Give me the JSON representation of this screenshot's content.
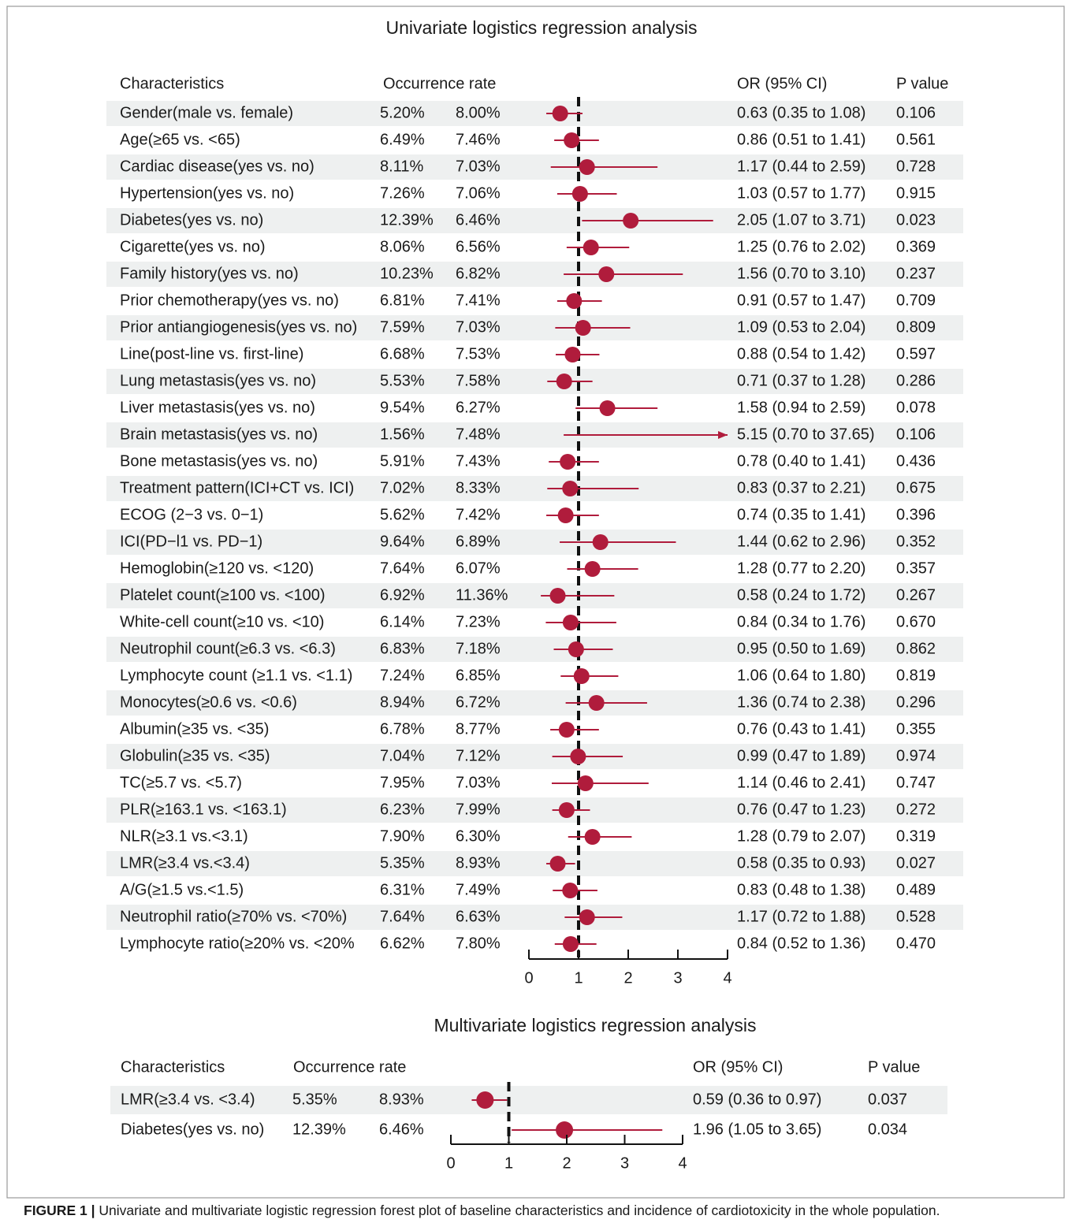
{
  "chart_data": [
    {
      "type": "forest",
      "title": "Univariate logistics regression analysis",
      "headers": [
        "Characteristics",
        "Occurrence rate",
        "OR (95% CI)",
        "P value"
      ],
      "xlim": [
        0,
        4
      ],
      "xticks": [
        0,
        1,
        2,
        3,
        4
      ],
      "ref_line": 1,
      "color": "#b01c3c",
      "rows": [
        {
          "label": "Gender(male vs. female)",
          "rate1": "5.20%",
          "rate2": "8.00%",
          "or": 0.63,
          "ci_low": 0.35,
          "ci_high": 1.08,
          "or_label": "0.63 (0.35 to 1.08)",
          "p": "0.106"
        },
        {
          "label": "Age(≥65 vs. <65)",
          "rate1": "6.49%",
          "rate2": "7.46%",
          "or": 0.86,
          "ci_low": 0.51,
          "ci_high": 1.41,
          "or_label": "0.86 (0.51 to 1.41)",
          "p": "0.561"
        },
        {
          "label": "Cardiac disease(yes vs. no)",
          "rate1": "8.11%",
          "rate2": "7.03%",
          "or": 1.17,
          "ci_low": 0.44,
          "ci_high": 2.59,
          "or_label": "1.17 (0.44 to 2.59)",
          "p": "0.728"
        },
        {
          "label": "Hypertension(yes vs. no)",
          "rate1": "7.26%",
          "rate2": "7.06%",
          "or": 1.03,
          "ci_low": 0.57,
          "ci_high": 1.77,
          "or_label": "1.03 (0.57 to 1.77)",
          "p": "0.915"
        },
        {
          "label": "Diabetes(yes vs. no)",
          "rate1": "12.39%",
          "rate2": "6.46%",
          "or": 2.05,
          "ci_low": 1.07,
          "ci_high": 3.71,
          "or_label": "2.05 (1.07 to 3.71)",
          "p": "0.023"
        },
        {
          "label": "Cigarette(yes vs. no)",
          "rate1": "8.06%",
          "rate2": "6.56%",
          "or": 1.25,
          "ci_low": 0.76,
          "ci_high": 2.02,
          "or_label": "1.25 (0.76 to 2.02)",
          "p": "0.369"
        },
        {
          "label": "Family history(yes vs. no)",
          "rate1": "10.23%",
          "rate2": "6.82%",
          "or": 1.56,
          "ci_low": 0.7,
          "ci_high": 3.1,
          "or_label": "1.56 (0.70 to 3.10)",
          "p": "0.237"
        },
        {
          "label": "Prior chemotherapy(yes vs. no)",
          "rate1": "6.81%",
          "rate2": "7.41%",
          "or": 0.91,
          "ci_low": 0.57,
          "ci_high": 1.47,
          "or_label": "0.91 (0.57 to 1.47)",
          "p": "0.709"
        },
        {
          "label": "Prior antiangiogenesis(yes vs. no)",
          "rate1": "7.59%",
          "rate2": "7.03%",
          "or": 1.09,
          "ci_low": 0.53,
          "ci_high": 2.04,
          "or_label": "1.09 (0.53 to 2.04)",
          "p": "0.809"
        },
        {
          "label": "Line(post-line vs. first-line)",
          "rate1": "6.68%",
          "rate2": "7.53%",
          "or": 0.88,
          "ci_low": 0.54,
          "ci_high": 1.42,
          "or_label": "0.88 (0.54 to 1.42)",
          "p": "0.597"
        },
        {
          "label": "Lung metastasis(yes vs. no)",
          "rate1": "5.53%",
          "rate2": "7.58%",
          "or": 0.71,
          "ci_low": 0.37,
          "ci_high": 1.28,
          "or_label": "0.71 (0.37 to 1.28)",
          "p": "0.286"
        },
        {
          "label": "Liver metastasis(yes vs. no)",
          "rate1": "9.54%",
          "rate2": "6.27%",
          "or": 1.58,
          "ci_low": 0.94,
          "ci_high": 2.59,
          "or_label": "1.58 (0.94 to 2.59)",
          "p": "0.078"
        },
        {
          "label": "Brain metastasis(yes vs. no)",
          "rate1": "1.56%",
          "rate2": "7.48%",
          "or": 5.15,
          "ci_low": 0.7,
          "ci_high": 37.65,
          "or_label": "5.15 (0.70 to 37.65)",
          "p": "0.106"
        },
        {
          "label": "Bone metastasis(yes vs. no)",
          "rate1": "5.91%",
          "rate2": "7.43%",
          "or": 0.78,
          "ci_low": 0.4,
          "ci_high": 1.41,
          "or_label": "0.78 (0.40 to 1.41)",
          "p": "0.436"
        },
        {
          "label": "Treatment pattern(ICI+CT vs. ICI)",
          "rate1": "7.02%",
          "rate2": "8.33%",
          "or": 0.83,
          "ci_low": 0.37,
          "ci_high": 2.21,
          "or_label": "0.83 (0.37 to 2.21)",
          "p": "0.675"
        },
        {
          "label": "ECOG  (2−3 vs. 0−1)",
          "rate1": "5.62%",
          "rate2": "7.42%",
          "or": 0.74,
          "ci_low": 0.35,
          "ci_high": 1.41,
          "or_label": "0.74 (0.35 to 1.41)",
          "p": "0.396"
        },
        {
          "label": "ICI(PD−l1 vs. PD−1)",
          "rate1": "9.64%",
          "rate2": "6.89%",
          "or": 1.44,
          "ci_low": 0.62,
          "ci_high": 2.96,
          "or_label": "1.44 (0.62 to 2.96)",
          "p": "0.352"
        },
        {
          "label": "Hemoglobin(≥120 vs. <120)",
          "rate1": "7.64%",
          "rate2": "6.07%",
          "or": 1.28,
          "ci_low": 0.77,
          "ci_high": 2.2,
          "or_label": "1.28 (0.77 to 2.20)",
          "p": "0.357"
        },
        {
          "label": "Platelet count(≥100 vs. <100)",
          "rate1": "6.92%",
          "rate2": "11.36%",
          "or": 0.58,
          "ci_low": 0.24,
          "ci_high": 1.72,
          "or_label": "0.58 (0.24 to 1.72)",
          "p": "0.267"
        },
        {
          "label": "White-cell count(≥10 vs. <10)",
          "rate1": "6.14%",
          "rate2": "7.23%",
          "or": 0.84,
          "ci_low": 0.34,
          "ci_high": 1.76,
          "or_label": "0.84 (0.34 to 1.76)",
          "p": "0.670"
        },
        {
          "label": "Neutrophil count(≥6.3 vs. <6.3)",
          "rate1": "6.83%",
          "rate2": "7.18%",
          "or": 0.95,
          "ci_low": 0.5,
          "ci_high": 1.69,
          "or_label": "0.95 (0.50 to 1.69)",
          "p": "0.862"
        },
        {
          "label": "Lymphocyte count (≥1.1 vs. <1.1)",
          "rate1": "7.24%",
          "rate2": "6.85%",
          "or": 1.06,
          "ci_low": 0.64,
          "ci_high": 1.8,
          "or_label": "1.06 (0.64 to 1.80)",
          "p": "0.819"
        },
        {
          "label": "Monocytes(≥0.6 vs. <0.6)",
          "rate1": "8.94%",
          "rate2": "6.72%",
          "or": 1.36,
          "ci_low": 0.74,
          "ci_high": 2.38,
          "or_label": "1.36 (0.74 to 2.38)",
          "p": "0.296"
        },
        {
          "label": "Albumin(≥35 vs. <35)",
          "rate1": "6.78%",
          "rate2": "8.77%",
          "or": 0.76,
          "ci_low": 0.43,
          "ci_high": 1.41,
          "or_label": "0.76 (0.43 to 1.41)",
          "p": "0.355"
        },
        {
          "label": "Globulin(≥35 vs. <35)",
          "rate1": "7.04%",
          "rate2": "7.12%",
          "or": 0.99,
          "ci_low": 0.47,
          "ci_high": 1.89,
          "or_label": "0.99 (0.47 to 1.89)",
          "p": "0.974"
        },
        {
          "label": "TC(≥5.7 vs. <5.7)",
          "rate1": "7.95%",
          "rate2": "7.03%",
          "or": 1.14,
          "ci_low": 0.46,
          "ci_high": 2.41,
          "or_label": "1.14 (0.46 to 2.41)",
          "p": "0.747"
        },
        {
          "label": "PLR(≥163.1 vs. <163.1)",
          "rate1": "6.23%",
          "rate2": "7.99%",
          "or": 0.76,
          "ci_low": 0.47,
          "ci_high": 1.23,
          "or_label": "0.76 (0.47 to 1.23)",
          "p": "0.272"
        },
        {
          "label": "NLR(≥3.1 vs.<3.1)",
          "rate1": "7.90%",
          "rate2": "6.30%",
          "or": 1.28,
          "ci_low": 0.79,
          "ci_high": 2.07,
          "or_label": "1.28 (0.79 to 2.07)",
          "p": "0.319"
        },
        {
          "label": "LMR(≥3.4 vs.<3.4)",
          "rate1": "5.35%",
          "rate2": "8.93%",
          "or": 0.58,
          "ci_low": 0.35,
          "ci_high": 0.93,
          "or_label": "0.58 (0.35 to 0.93)",
          "p": "0.027"
        },
        {
          "label": "A/G(≥1.5 vs.<1.5)",
          "rate1": "6.31%",
          "rate2": "7.49%",
          "or": 0.83,
          "ci_low": 0.48,
          "ci_high": 1.38,
          "or_label": "0.83 (0.48 to 1.38)",
          "p": "0.489"
        },
        {
          "label": "Neutrophil ratio(≥70% vs. <70%)",
          "rate1": "7.64%",
          "rate2": "6.63%",
          "or": 1.17,
          "ci_low": 0.72,
          "ci_high": 1.88,
          "or_label": "1.17 (0.72 to 1.88)",
          "p": "0.528"
        },
        {
          "label": "Lymphocyte ratio(≥20% vs. <20%",
          "rate1": "6.62%",
          "rate2": "7.80%",
          "or": 0.84,
          "ci_low": 0.52,
          "ci_high": 1.36,
          "or_label": "0.84 (0.52 to 1.36)",
          "p": "0.470"
        }
      ]
    },
    {
      "type": "forest",
      "title": "Multivariate logistics regression analysis",
      "headers": [
        "Characteristics",
        "Occurrence rate",
        "OR (95% CI)",
        "P value"
      ],
      "xlim": [
        0,
        4
      ],
      "xticks": [
        0,
        1,
        2,
        3,
        4
      ],
      "ref_line": 1,
      "color": "#b01c3c",
      "rows": [
        {
          "label": "LMR(≥3.4 vs. <3.4)",
          "rate1": "5.35%",
          "rate2": "8.93%",
          "or": 0.59,
          "ci_low": 0.36,
          "ci_high": 0.97,
          "or_label": "0.59 (0.36 to 0.97)",
          "p": "0.037"
        },
        {
          "label": "Diabetes(yes vs. no)",
          "rate1": "12.39%",
          "rate2": "6.46%",
          "or": 1.96,
          "ci_low": 1.05,
          "ci_high": 3.65,
          "or_label": "1.96 (1.05 to 3.65)",
          "p": "0.034"
        }
      ]
    }
  ],
  "caption": {
    "label": "FIGURE 1 |",
    "text": "Univariate and multivariate logistic regression forest plot of baseline characteristics and incidence of cardiotoxicity in the whole population."
  }
}
